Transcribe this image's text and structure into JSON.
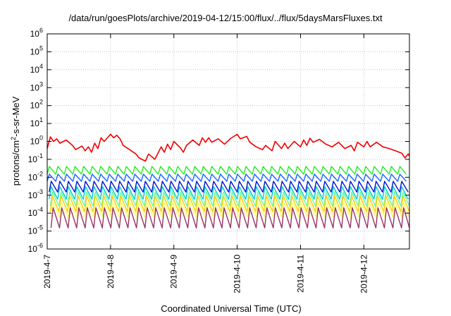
{
  "chart_data": {
    "type": "line",
    "title": "/data/run/goesPlots/archive/2019-04-12/15:00/flux/../flux/5daysMarsFluxes.txt",
    "xlabel": "Coordinated Universal Time (UTC)",
    "ylabel_parts": {
      "before": "protons/cm",
      "sup": "2",
      "after": "-s-sr-MeV"
    },
    "y_scale": "log",
    "ylim_exp": [
      -6,
      6
    ],
    "y_tick_exponents": [
      -6,
      -5,
      -4,
      -3,
      -2,
      -1,
      0,
      1,
      2,
      3,
      4,
      5,
      6
    ],
    "y_tick_base": "10",
    "x_tick_labels": [
      "2019-4-7",
      "2019-4-8",
      "2019-4-9",
      "2019-4-10",
      "2019-4-11",
      "2019-4-12"
    ],
    "x_tick_days": [
      0,
      1,
      2,
      3,
      4,
      5
    ],
    "xlim_days": [
      0,
      5.72
    ],
    "grid": true,
    "legend": "none",
    "series": [
      {
        "color": "#ee0000",
        "x": [
          0,
          0.05,
          0.1,
          0.15,
          0.2,
          0.3,
          0.4,
          0.45,
          0.55,
          0.6,
          0.65,
          0.7,
          0.75,
          0.8,
          0.85,
          0.9,
          1.0,
          1.05,
          1.1,
          1.15,
          1.2,
          1.3,
          1.4,
          1.45,
          1.55,
          1.6,
          1.7,
          1.8,
          1.85,
          1.9,
          1.95,
          2.0,
          2.1,
          2.15,
          2.2,
          2.3,
          2.4,
          2.45,
          2.5,
          2.55,
          2.6,
          2.7,
          2.8,
          2.9,
          3.0,
          3.05,
          3.15,
          3.2,
          3.3,
          3.4,
          3.45,
          3.55,
          3.6,
          3.7,
          3.75,
          3.8,
          3.9,
          4.0,
          4.05,
          4.1,
          4.15,
          4.2,
          4.3,
          4.4,
          4.5,
          4.6,
          4.7,
          4.8,
          4.85,
          4.9,
          5.0,
          5.05,
          5.1,
          5.2,
          5.3,
          5.4,
          5.5,
          5.6,
          5.65,
          5.7,
          5.72
        ],
        "y": [
          0.4,
          1.8,
          1.0,
          1.4,
          0.8,
          1.2,
          0.6,
          0.35,
          0.55,
          0.3,
          0.5,
          0.25,
          0.8,
          0.4,
          1.6,
          1.0,
          2.5,
          1.6,
          2.2,
          1.4,
          0.6,
          0.35,
          0.2,
          0.12,
          0.08,
          0.2,
          0.1,
          0.5,
          0.25,
          0.7,
          0.35,
          1.0,
          0.45,
          0.25,
          0.6,
          1.2,
          0.6,
          1.6,
          0.9,
          1.6,
          0.9,
          1.4,
          0.7,
          1.5,
          2.5,
          1.4,
          1.9,
          0.9,
          0.5,
          0.35,
          0.6,
          0.3,
          1.0,
          0.4,
          0.8,
          0.4,
          1.0,
          0.5,
          1.2,
          0.6,
          1.5,
          0.9,
          1.3,
          0.7,
          0.5,
          0.9,
          0.4,
          0.6,
          0.3,
          0.9,
          0.5,
          1.0,
          0.5,
          0.9,
          0.5,
          0.4,
          0.3,
          0.22,
          0.12,
          0.2,
          0.15
        ]
      },
      {
        "color": "#22ee22",
        "x0": 0,
        "period": 0.135,
        "count": 42,
        "peak": 0.04,
        "trough": 0.015
      },
      {
        "color": "#1a66ff",
        "x0": 0,
        "period": 0.135,
        "count": 42,
        "peak": 0.015,
        "trough": 0.006
      },
      {
        "color": "#0011cc",
        "x0": 0.03,
        "period": 0.135,
        "count": 42,
        "peak": 0.006,
        "trough": 0.0015
      },
      {
        "color": "#00cccc",
        "x0": 0.03,
        "period": 0.135,
        "count": 42,
        "peak": 0.003,
        "trough": 0.0006
      },
      {
        "color": "#66ff99",
        "x0": 0.05,
        "period": 0.135,
        "count": 42,
        "peak": 0.0015,
        "trough": 0.00025
      },
      {
        "color": "#ffcc00",
        "x0": 0.05,
        "period": 0.135,
        "count": 42,
        "peak": 0.0009,
        "trough": 0.00012
      },
      {
        "color": "#ffff66",
        "x0": 0.06,
        "period": 0.135,
        "count": 42,
        "peak": 0.0004,
        "trough": 6e-05
      },
      {
        "color": "#993366",
        "x0": 0.06,
        "period": 0.135,
        "count": 42,
        "peak": 0.0002,
        "trough": 1.5e-05
      }
    ]
  }
}
